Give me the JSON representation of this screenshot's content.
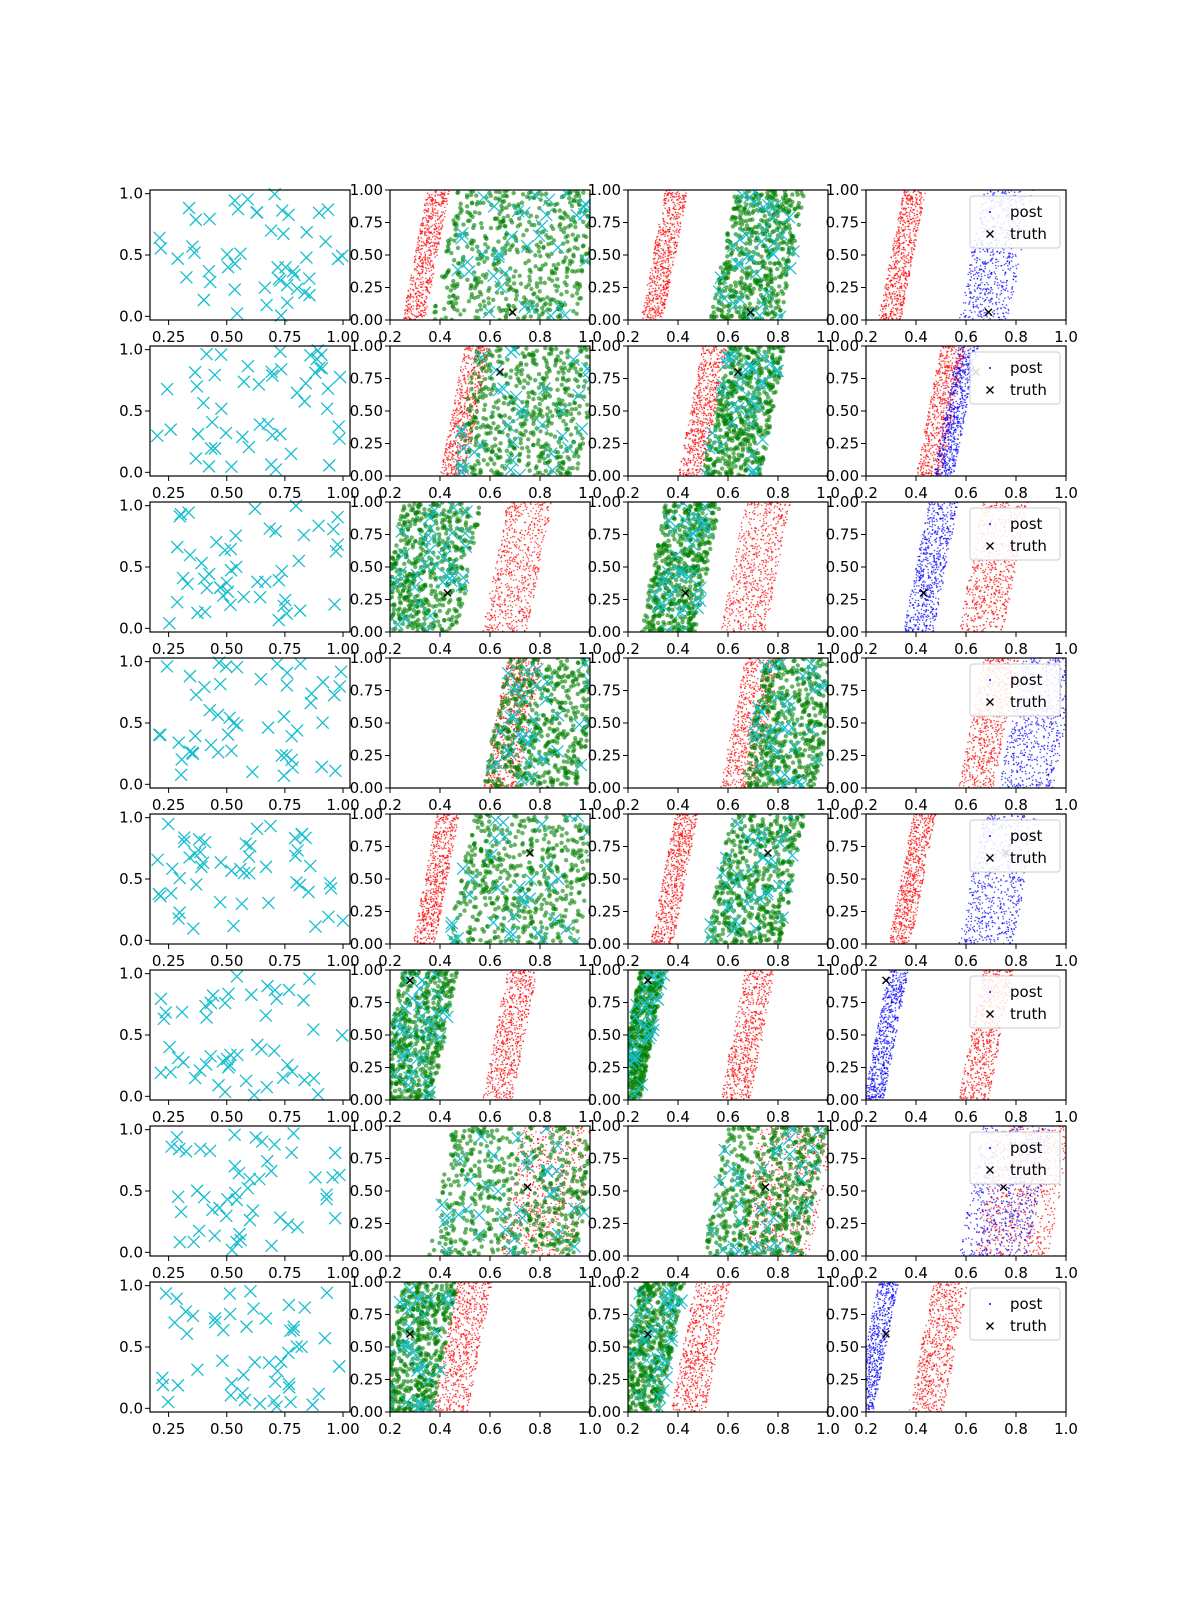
{
  "chart_data": {
    "type": "scatter",
    "layout": "8 rows x 4 columns of scatter subplots",
    "colors": {
      "cyan_cross": "#17becf",
      "red": "#ff0000",
      "green": "#008000",
      "blue": "#0000ff",
      "truth": "#000000"
    },
    "first_column": {
      "xlim": [
        0.17,
        1.03
      ],
      "ylim": [
        -0.03,
        1.03
      ],
      "xticks": [
        "0.25",
        "0.50",
        "0.75",
        "1.00"
      ],
      "yticks": [
        "0.0",
        "0.5",
        "1.0"
      ],
      "marker": "x",
      "note": "about 50 cyan crosses per panel scattered uniformly over the unit square"
    },
    "posterior_columns": {
      "xlim": [
        0.2,
        1.0
      ],
      "ylim": [
        0.0,
        1.0
      ],
      "xticks": [
        "0.2",
        "0.4",
        "0.6",
        "0.8",
        "1.0"
      ],
      "yticks": [
        "0.00",
        "0.25",
        "0.50",
        "0.75",
        "1.00"
      ]
    },
    "legend": {
      "location": "upper right",
      "entries": [
        {
          "label": "post",
          "marker": "dot"
        },
        {
          "label": "truth",
          "marker": "x"
        }
      ]
    },
    "rows": [
      {
        "truth": [
          0.69,
          0.06
        ],
        "red_band": [
          0.3,
          0.39
        ],
        "other_band": [
          0.62,
          0.82
        ],
        "green_band": [
          0.42,
          1.0
        ],
        "green_band_col3": [
          0.58,
          0.86
        ],
        "fourth_color": "blue"
      },
      {
        "truth": [
          0.64,
          0.8
        ],
        "red_band": [
          0.45,
          0.55
        ],
        "other_band": [
          0.52,
          0.6
        ],
        "green_band": [
          0.5,
          1.0
        ],
        "green_band_col3": [
          0.55,
          0.78
        ],
        "fourth_color": "blue"
      },
      {
        "truth": [
          0.43,
          0.3
        ],
        "red_band": [
          0.62,
          0.8
        ],
        "other_band": [
          0.4,
          0.52
        ],
        "green_band": [
          0.2,
          0.52
        ],
        "green_band_col3": [
          0.3,
          0.52
        ],
        "fourth_color": "blue"
      },
      {
        "truth": [
          0.82,
          -0.02
        ],
        "red_band": [
          0.62,
          0.76
        ],
        "other_band": [
          0.78,
          1.0
        ],
        "green_band": [
          0.62,
          1.0
        ],
        "green_band_col3": [
          0.7,
          1.0
        ],
        "fourth_color": "blue"
      },
      {
        "truth": [
          0.76,
          0.7
        ],
        "red_band": [
          0.34,
          0.43
        ],
        "other_band": [
          0.62,
          0.84
        ],
        "green_band": [
          0.48,
          1.0
        ],
        "green_band_col3": [
          0.56,
          0.86
        ],
        "fourth_color": "blue"
      },
      {
        "truth": [
          0.28,
          0.92
        ],
        "red_band": [
          0.62,
          0.74
        ],
        "other_band": [
          0.24,
          0.32
        ],
        "green_band": [
          0.2,
          0.42
        ],
        "green_band_col3": [
          0.2,
          0.3
        ],
        "fourth_color": "blue"
      },
      {
        "truth": [
          0.75,
          0.53
        ],
        "red_band": [
          0.68,
          0.98
        ],
        "other_band": [
          0.62,
          0.9
        ],
        "green_band": [
          0.4,
          1.0
        ],
        "green_band_col3": [
          0.55,
          0.95
        ],
        "fourth_color": "blue"
      },
      {
        "truth": [
          0.28,
          0.6
        ],
        "red_band": [
          0.42,
          0.56
        ],
        "other_band": [
          0.2,
          0.28
        ],
        "green_band": [
          0.2,
          0.42
        ],
        "green_band_col3": [
          0.2,
          0.38
        ],
        "fourth_color": "blue"
      }
    ]
  }
}
